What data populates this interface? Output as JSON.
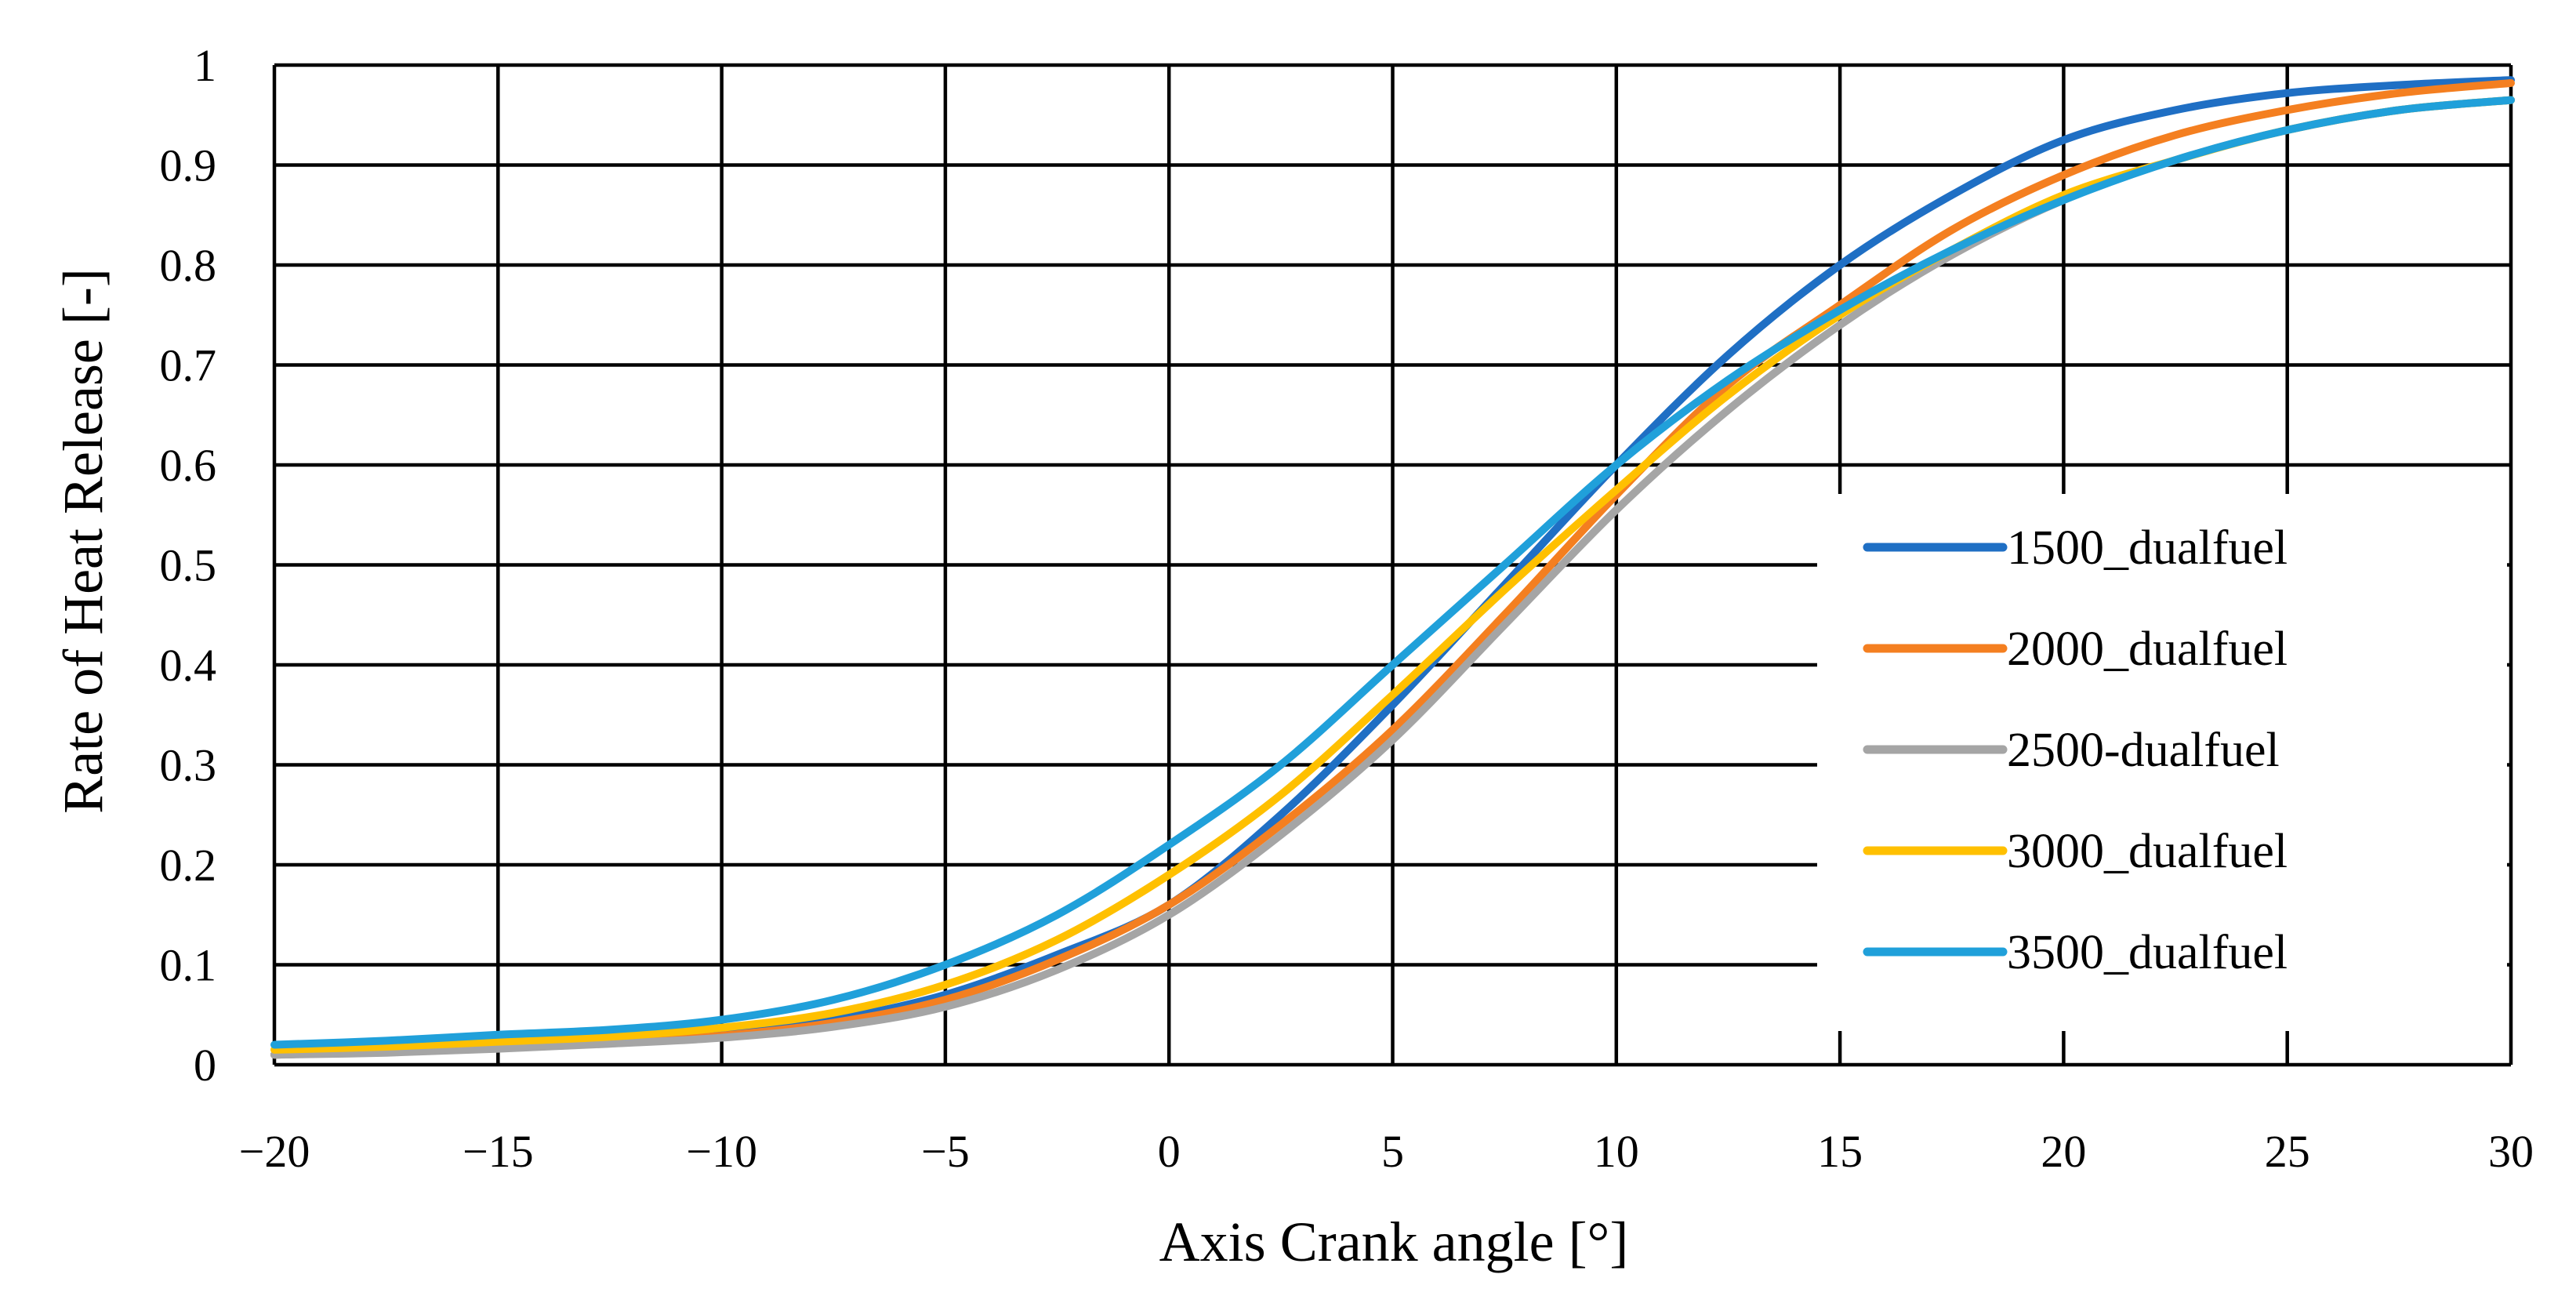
{
  "chart_data": {
    "type": "line",
    "title": "",
    "xlabel": "Axis Crank angle [°]",
    "ylabel": "Rate of Heat Release [-]",
    "xlim": [
      -20,
      30
    ],
    "ylim": [
      0,
      1
    ],
    "x_ticks": [
      -20,
      -15,
      -10,
      -5,
      0,
      5,
      10,
      15,
      20,
      25,
      30
    ],
    "x_tick_labels": [
      "−20",
      "−15",
      "−10",
      "−5",
      "0",
      "5",
      "10",
      "15",
      "20",
      "25",
      "30"
    ],
    "y_ticks": [
      0,
      0.1,
      0.2,
      0.3,
      0.4,
      0.5,
      0.6,
      0.7,
      0.8,
      0.9,
      1
    ],
    "y_tick_labels": [
      "0",
      "0.1",
      "0.2",
      "0.3",
      "0.4",
      "0.5",
      "0.6",
      "0.7",
      "0.8",
      "0.9",
      "1"
    ],
    "grid": true,
    "legend_position": "right",
    "x": [
      -20,
      -17.5,
      -15,
      -12.5,
      -10,
      -7.5,
      -5,
      -2.5,
      0,
      2.5,
      5,
      7.5,
      10,
      12.5,
      15,
      17.5,
      20,
      22.5,
      25,
      27.5,
      30
    ],
    "series": [
      {
        "name": "1500_dualfuel",
        "color": "#1F6FC4",
        "values": [
          0.01,
          0.013,
          0.017,
          0.022,
          0.03,
          0.045,
          0.07,
          0.11,
          0.16,
          0.25,
          0.36,
          0.48,
          0.6,
          0.71,
          0.8,
          0.87,
          0.925,
          0.955,
          0.972,
          0.98,
          0.985
        ]
      },
      {
        "name": "2000_dualfuel",
        "color": "#F47F20",
        "values": [
          0.01,
          0.013,
          0.017,
          0.022,
          0.029,
          0.042,
          0.065,
          0.105,
          0.16,
          0.24,
          0.335,
          0.45,
          0.57,
          0.68,
          0.76,
          0.835,
          0.89,
          0.93,
          0.955,
          0.972,
          0.982
        ]
      },
      {
        "name": "2500-dualfuel",
        "color": "#A5A5A5",
        "values": [
          0.01,
          0.012,
          0.016,
          0.021,
          0.027,
          0.038,
          0.058,
          0.095,
          0.15,
          0.23,
          0.325,
          0.44,
          0.555,
          0.655,
          0.74,
          0.81,
          0.865,
          0.905,
          0.935,
          0.955,
          0.965
        ]
      },
      {
        "name": "3000_dualfuel",
        "color": "#FFC000",
        "values": [
          0.015,
          0.018,
          0.023,
          0.028,
          0.037,
          0.052,
          0.08,
          0.125,
          0.19,
          0.27,
          0.37,
          0.475,
          0.575,
          0.67,
          0.75,
          0.815,
          0.87,
          0.905,
          0.935,
          0.955,
          0.965
        ]
      },
      {
        "name": "3500_dualfuel",
        "color": "#20A0DA",
        "values": [
          0.02,
          0.024,
          0.03,
          0.035,
          0.045,
          0.065,
          0.1,
          0.15,
          0.22,
          0.3,
          0.4,
          0.5,
          0.6,
          0.685,
          0.755,
          0.815,
          0.865,
          0.905,
          0.935,
          0.955,
          0.965
        ]
      }
    ]
  }
}
